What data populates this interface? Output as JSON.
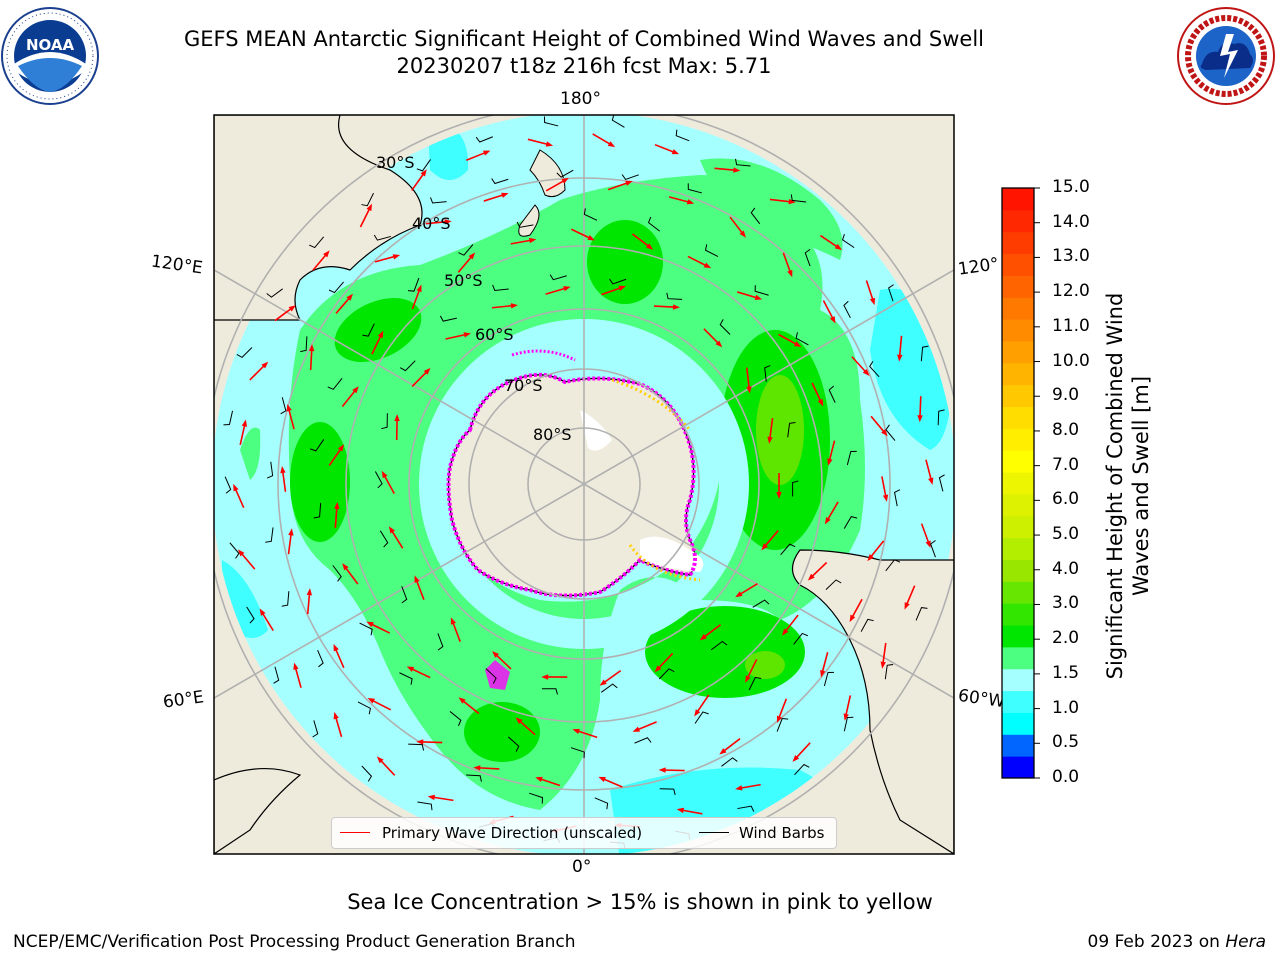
{
  "header": {
    "title_line1": "GEFS MEAN Antarctic Significant Height of Combined Wind Waves and Swell",
    "title_line2": "20230207 t18z 216h fcst   Max: 5.71"
  },
  "logos": {
    "noaa": {
      "text": "NOAA",
      "ring_text": "NATIONAL OCEANIC AND ATMOSPHERIC ADMINISTRATION · U.S. DEPARTMENT OF COMMERCE"
    },
    "nws": {
      "ring_text": "NATIONAL WEATHER SERVICE"
    }
  },
  "map": {
    "projection": "south-polar-stereographic",
    "longitude_labels": {
      "top": "180°",
      "bottom": "0°",
      "upper_left": "120°E",
      "lower_left": "60°E",
      "upper_right": "120°",
      "lower_right": "60°W"
    },
    "latitude_labels": [
      "30°S",
      "40°S",
      "50°S",
      "60°S",
      "70°S",
      "80°S"
    ],
    "colors": {
      "land": "#efebdc",
      "ocean_band_0_5": "#1a7cff",
      "ocean_band_1_5": "#00ffff",
      "ocean_band_2": "#a6ffff",
      "ocean_band_3": "#4cff7a",
      "ocean_band_4": "#00e600",
      "ocean_band_5": "#5fe600",
      "ice": "#ff00ff",
      "wave_arrow": "#ff0000",
      "wind_barb": "#000000",
      "graticule": "#b0b0b0"
    }
  },
  "colorbar": {
    "label": "Significant Height of Combined Wind Waves and Swell [m]",
    "ticks": [
      "15.0",
      "14.0",
      "13.0",
      "12.0",
      "11.0",
      "10.0",
      "9.0",
      "8.0",
      "7.0",
      "6.0",
      "5.0",
      "4.0",
      "3.0",
      "2.0",
      "1.5",
      "1.0",
      "0.5",
      "0.0"
    ],
    "levels": [
      0,
      0.5,
      1.0,
      1.5,
      2.0,
      3.0,
      4.0,
      5.0,
      5.5,
      6.0,
      6.5,
      7.0,
      7.5,
      8.0,
      8.5,
      9.0,
      9.5,
      10.0,
      10.5,
      11.0,
      11.5,
      12.0,
      12.5,
      13.0,
      13.5,
      14.0,
      14.5,
      15.0
    ],
    "colors": [
      "#0000ff",
      "#0066ff",
      "#00ffff",
      "#40ffff",
      "#a6ffff",
      "#4dff80",
      "#00e600",
      "#33e600",
      "#66e600",
      "#99e600",
      "#b3ee00",
      "#ccf000",
      "#ddf200",
      "#eef500",
      "#ffff00",
      "#ffee00",
      "#ffdd00",
      "#ffc800",
      "#ffb400",
      "#ffa000",
      "#ff8c00",
      "#ff7800",
      "#ff6400",
      "#ff5000",
      "#ff3c00",
      "#ff2800",
      "#ff1400"
    ]
  },
  "legend": {
    "primary_wave": "Primary Wave Direction (unscaled)",
    "wind_barbs": "Wind Barbs"
  },
  "footnote": "Sea Ice Concentration > 15% is shown in pink to yellow",
  "credit": {
    "left": "NCEP/EMC/Verification Post Processing Product Generation Branch",
    "right_prefix": "09 Feb 2023 on ",
    "right_machine": "Hera"
  }
}
